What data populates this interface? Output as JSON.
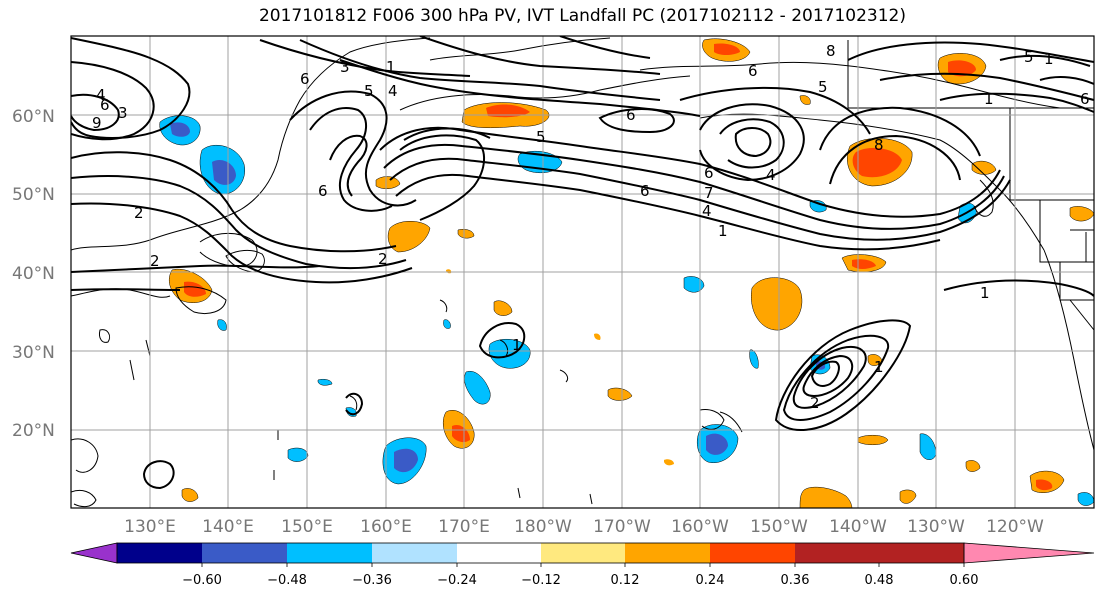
{
  "title": "2017101812 F006 300 hPa PV, IVT Landfall PC (2017102112 - 2017102312)",
  "latitude_labels": [
    "60°N",
    "50°N",
    "40°N",
    "30°N",
    "20°N"
  ],
  "longitude_labels": [
    "130°E",
    "140°E",
    "150°E",
    "160°E",
    "170°E",
    "180°W",
    "170°W",
    "160°W",
    "150°W",
    "140°W",
    "130°W",
    "120°W"
  ],
  "contour_labels": [
    "6",
    "3",
    "1",
    "4",
    "5",
    "6",
    "4",
    "3",
    "9",
    "6",
    "2",
    "2",
    "6",
    "5",
    "5",
    "4",
    "6",
    "8",
    "6",
    "7",
    "4",
    "1",
    "6",
    "5",
    "1",
    "1",
    "8",
    "2",
    "1",
    "2",
    "1",
    "6",
    "1"
  ],
  "colorbar": {
    "ticks": [
      "−0.60",
      "−0.48",
      "−0.36",
      "−0.24",
      "−0.12",
      "0.12",
      "0.24",
      "0.36",
      "0.48",
      "0.60"
    ],
    "colors": [
      "#9932CC",
      "#00008B",
      "#3A5BC7",
      "#00BFFF",
      "#B0E2FF",
      "#FFFFFF",
      "#FFE97F",
      "#FFA500",
      "#FF4500",
      "#B22222",
      "#FF88B0"
    ]
  }
}
